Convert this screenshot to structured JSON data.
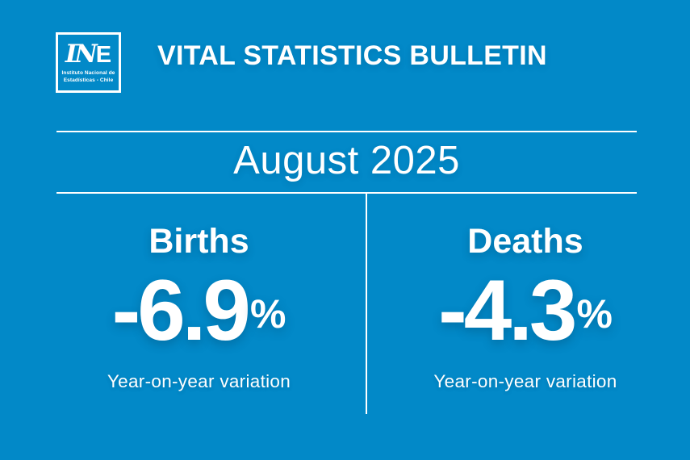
{
  "colors": {
    "background": "#0289C8",
    "text": "#FFFFFF",
    "divider": "#FFFFFF"
  },
  "header": {
    "logo": {
      "mark_script": "IN",
      "mark_block": "E",
      "sub_line1": "Instituto Nacional de",
      "sub_line2": "Estadísticas - Chile"
    },
    "title": "VITAL STATISTICS BULLETIN"
  },
  "period": "August 2025",
  "stats": [
    {
      "label": "Births",
      "value": "-6.9",
      "unit": "%",
      "caption": "Year-on-year variation"
    },
    {
      "label": "Deaths",
      "value": "-4.3",
      "unit": "%",
      "caption": "Year-on-year variation"
    }
  ],
  "chart_data": {
    "type": "table",
    "title": "Vital Statistics Bulletin",
    "period": "August 2025",
    "categories": [
      "Births",
      "Deaths"
    ],
    "values": [
      -6.9,
      -4.3
    ],
    "unit": "%",
    "value_label": "Year-on-year variation",
    "source": "Instituto Nacional de Estadísticas - Chile"
  }
}
